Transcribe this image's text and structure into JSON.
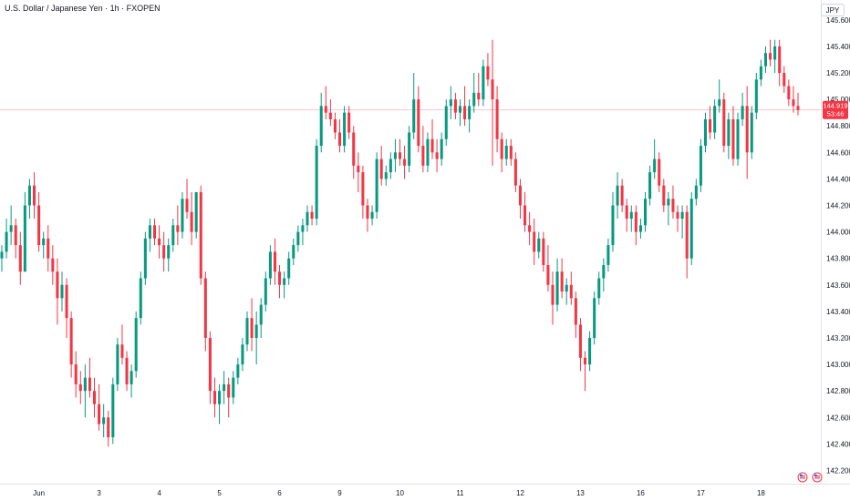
{
  "title": "U.S. Dollar / Japanese Yen · 1h · FXOPEN",
  "currency": "JPY",
  "price_label": "144.919",
  "countdown_label": "53:46",
  "colors": {
    "up": "#089981",
    "down": "#f23645",
    "price_line": "#f23645",
    "axis_text": "#131722",
    "border": "#e0e3eb"
  },
  "chart_data": {
    "type": "candlestick",
    "title": "U.S. Dollar / Japanese Yen · 1h · FXOPEN",
    "ylim": [
      142.1,
      145.75
    ],
    "y_ticks": [
      "142.200",
      "142.400",
      "142.600",
      "142.800",
      "143.000",
      "143.200",
      "143.400",
      "143.600",
      "143.800",
      "144.000",
      "144.200",
      "144.400",
      "144.600",
      "144.800",
      "145.000",
      "145.200",
      "145.400",
      "145.600"
    ],
    "x_ticks": [
      "Jun",
      "3",
      "4",
      "5",
      "6",
      "9",
      "10",
      "11",
      "12",
      "13",
      "16",
      "17",
      "18"
    ],
    "current_price": 144.92,
    "grid": false,
    "series": [
      {
        "candles": [
          [
            143.8,
            143.9,
            143.7,
            143.85
          ],
          [
            143.85,
            144.1,
            143.8,
            144.0
          ],
          [
            144.0,
            144.2,
            143.9,
            144.05
          ],
          [
            144.05,
            144.1,
            143.8,
            143.9
          ],
          [
            143.9,
            144.0,
            143.6,
            143.7
          ],
          [
            143.7,
            144.3,
            143.7,
            144.2
          ],
          [
            144.2,
            144.4,
            144.1,
            144.35
          ],
          [
            144.35,
            144.45,
            144.1,
            144.2
          ],
          [
            144.2,
            144.3,
            143.85,
            143.9
          ],
          [
            143.9,
            144.0,
            143.8,
            143.95
          ],
          [
            143.95,
            144.05,
            143.7,
            143.8
          ],
          [
            143.8,
            143.9,
            143.6,
            143.7
          ],
          [
            143.7,
            143.8,
            143.3,
            143.5
          ],
          [
            143.5,
            143.7,
            143.4,
            143.6
          ],
          [
            143.6,
            143.65,
            143.2,
            143.35
          ],
          [
            143.35,
            143.4,
            142.9,
            143.0
          ],
          [
            143.0,
            143.1,
            142.75,
            142.85
          ],
          [
            142.85,
            142.95,
            142.7,
            142.8
          ],
          [
            142.8,
            143.0,
            142.6,
            142.9
          ],
          [
            142.9,
            143.05,
            142.75,
            142.8
          ],
          [
            142.8,
            142.9,
            142.6,
            142.7
          ],
          [
            142.7,
            142.85,
            142.5,
            142.55
          ],
          [
            142.55,
            142.7,
            142.45,
            142.6
          ],
          [
            142.6,
            142.65,
            142.38,
            142.45
          ],
          [
            142.45,
            142.9,
            142.4,
            142.85
          ],
          [
            142.85,
            143.2,
            142.8,
            143.15
          ],
          [
            143.15,
            143.3,
            143.0,
            143.05
          ],
          [
            143.05,
            143.1,
            142.8,
            142.85
          ],
          [
            142.85,
            143.0,
            142.75,
            142.95
          ],
          [
            142.95,
            143.4,
            142.9,
            143.35
          ],
          [
            143.35,
            143.7,
            143.3,
            143.65
          ],
          [
            143.65,
            144.0,
            143.6,
            143.95
          ],
          [
            143.95,
            144.1,
            143.85,
            144.05
          ],
          [
            144.05,
            144.1,
            143.9,
            143.95
          ],
          [
            143.95,
            144.05,
            143.8,
            143.9
          ],
          [
            143.9,
            144.0,
            143.7,
            143.8
          ],
          [
            143.8,
            143.95,
            143.7,
            143.9
          ],
          [
            143.9,
            144.1,
            143.85,
            144.05
          ],
          [
            144.05,
            144.2,
            143.9,
            144.0
          ],
          [
            144.0,
            144.3,
            143.95,
            144.25
          ],
          [
            144.25,
            144.4,
            144.1,
            144.15
          ],
          [
            144.15,
            144.3,
            143.9,
            144.0
          ],
          [
            144.0,
            144.3,
            143.95,
            144.3
          ],
          [
            144.3,
            144.35,
            143.6,
            143.65
          ],
          [
            143.65,
            143.7,
            143.1,
            143.2
          ],
          [
            143.2,
            143.25,
            142.7,
            142.8
          ],
          [
            142.8,
            142.9,
            142.6,
            142.7
          ],
          [
            142.7,
            142.85,
            142.55,
            142.8
          ],
          [
            142.8,
            142.95,
            142.7,
            142.85
          ],
          [
            142.85,
            142.9,
            142.6,
            142.75
          ],
          [
            142.75,
            142.95,
            142.7,
            142.9
          ],
          [
            142.9,
            143.05,
            142.85,
            143.0
          ],
          [
            143.0,
            143.2,
            142.95,
            143.15
          ],
          [
            143.15,
            143.4,
            143.1,
            143.35
          ],
          [
            143.35,
            143.5,
            143.1,
            143.2
          ],
          [
            143.2,
            143.4,
            143.0,
            143.3
          ],
          [
            143.3,
            143.5,
            143.2,
            143.45
          ],
          [
            143.45,
            143.7,
            143.4,
            143.65
          ],
          [
            143.65,
            143.9,
            143.6,
            143.85
          ],
          [
            143.85,
            143.95,
            143.6,
            143.7
          ],
          [
            143.7,
            143.75,
            143.5,
            143.6
          ],
          [
            143.6,
            143.7,
            143.5,
            143.65
          ],
          [
            143.65,
            143.85,
            143.6,
            143.8
          ],
          [
            143.8,
            143.95,
            143.75,
            143.9
          ],
          [
            143.9,
            144.05,
            143.85,
            144.0
          ],
          [
            144.0,
            144.1,
            143.9,
            144.05
          ],
          [
            144.05,
            144.2,
            144.0,
            144.15
          ],
          [
            144.15,
            144.2,
            144.05,
            144.1
          ],
          [
            144.1,
            144.7,
            144.05,
            144.65
          ],
          [
            144.65,
            145.05,
            144.6,
            144.95
          ],
          [
            144.95,
            145.1,
            144.85,
            144.9
          ],
          [
            144.9,
            145.0,
            144.8,
            144.85
          ],
          [
            144.85,
            144.9,
            144.7,
            144.75
          ],
          [
            144.75,
            144.85,
            144.6,
            144.65
          ],
          [
            144.65,
            144.95,
            144.6,
            144.9
          ],
          [
            144.9,
            144.95,
            144.7,
            144.75
          ],
          [
            144.75,
            144.8,
            144.4,
            144.5
          ],
          [
            144.5,
            144.6,
            144.3,
            144.45
          ],
          [
            144.45,
            144.5,
            144.1,
            144.2
          ],
          [
            144.2,
            144.25,
            144.0,
            144.1
          ],
          [
            144.1,
            144.2,
            144.05,
            144.15
          ],
          [
            144.15,
            144.6,
            144.1,
            144.55
          ],
          [
            144.55,
            144.65,
            144.35,
            144.4
          ],
          [
            144.4,
            144.5,
            144.35,
            144.45
          ],
          [
            144.45,
            144.6,
            144.4,
            144.55
          ],
          [
            144.55,
            144.7,
            144.45,
            144.6
          ],
          [
            144.6,
            144.7,
            144.5,
            144.55
          ],
          [
            144.55,
            144.65,
            144.4,
            144.5
          ],
          [
            144.5,
            144.8,
            144.45,
            144.75
          ],
          [
            144.75,
            145.2,
            144.7,
            145.0
          ],
          [
            145.0,
            145.1,
            144.6,
            144.65
          ],
          [
            144.65,
            144.8,
            144.45,
            144.5
          ],
          [
            144.5,
            144.75,
            144.45,
            144.7
          ],
          [
            144.7,
            144.85,
            144.55,
            144.6
          ],
          [
            144.6,
            144.7,
            144.45,
            144.55
          ],
          [
            144.55,
            144.75,
            144.5,
            144.7
          ],
          [
            144.7,
            145.0,
            144.65,
            144.95
          ],
          [
            144.95,
            145.1,
            144.85,
            145.0
          ],
          [
            145.0,
            145.05,
            144.85,
            144.9
          ],
          [
            144.9,
            145.0,
            144.8,
            144.95
          ],
          [
            144.95,
            145.1,
            144.8,
            144.85
          ],
          [
            144.85,
            145.0,
            144.75,
            144.95
          ],
          [
            144.95,
            145.2,
            144.9,
            145.05
          ],
          [
            145.05,
            145.2,
            144.95,
            145.0
          ],
          [
            145.0,
            145.3,
            144.95,
            145.25
          ],
          [
            145.25,
            145.35,
            145.1,
            145.15
          ],
          [
            145.15,
            145.45,
            144.5,
            145.0
          ],
          [
            145.0,
            145.1,
            144.6,
            144.7
          ],
          [
            144.7,
            144.75,
            144.45,
            144.55
          ],
          [
            144.55,
            144.7,
            144.5,
            144.65
          ],
          [
            144.65,
            144.7,
            144.5,
            144.55
          ],
          [
            144.55,
            144.6,
            144.3,
            144.35
          ],
          [
            144.35,
            144.4,
            144.1,
            144.2
          ],
          [
            144.2,
            144.3,
            144.0,
            144.05
          ],
          [
            144.05,
            144.15,
            143.9,
            144.0
          ],
          [
            144.0,
            144.1,
            143.75,
            143.85
          ],
          [
            143.85,
            144.0,
            143.8,
            143.95
          ],
          [
            143.95,
            144.0,
            143.7,
            143.75
          ],
          [
            143.75,
            143.9,
            143.55,
            143.6
          ],
          [
            143.6,
            143.7,
            143.3,
            143.45
          ],
          [
            143.45,
            143.8,
            143.4,
            143.7
          ],
          [
            143.7,
            143.8,
            143.5,
            143.55
          ],
          [
            143.55,
            143.65,
            143.45,
            143.6
          ],
          [
            143.6,
            143.7,
            143.45,
            143.5
          ],
          [
            143.5,
            143.55,
            143.2,
            143.3
          ],
          [
            143.3,
            143.35,
            142.95,
            143.05
          ],
          [
            143.05,
            143.1,
            142.8,
            143.0
          ],
          [
            143.0,
            143.25,
            142.95,
            143.2
          ],
          [
            143.2,
            143.55,
            143.15,
            143.5
          ],
          [
            143.5,
            143.7,
            143.45,
            143.65
          ],
          [
            143.65,
            143.8,
            143.55,
            143.75
          ],
          [
            143.75,
            143.95,
            143.7,
            143.9
          ],
          [
            143.9,
            144.3,
            143.85,
            144.2
          ],
          [
            144.2,
            144.45,
            144.1,
            144.35
          ],
          [
            144.35,
            144.4,
            144.15,
            144.2
          ],
          [
            144.2,
            144.25,
            144.0,
            144.1
          ],
          [
            144.1,
            144.2,
            144.0,
            144.15
          ],
          [
            144.15,
            144.2,
            143.9,
            144.0
          ],
          [
            144.0,
            144.1,
            143.95,
            144.05
          ],
          [
            144.05,
            144.3,
            144.0,
            144.25
          ],
          [
            144.25,
            144.5,
            144.2,
            144.45
          ],
          [
            144.45,
            144.7,
            144.4,
            144.55
          ],
          [
            144.55,
            144.6,
            144.3,
            144.35
          ],
          [
            144.35,
            144.4,
            144.15,
            144.2
          ],
          [
            144.2,
            144.3,
            144.05,
            144.25
          ],
          [
            144.25,
            144.35,
            144.1,
            144.15
          ],
          [
            144.15,
            144.2,
            144.0,
            144.1
          ],
          [
            144.1,
            144.2,
            143.95,
            144.15
          ],
          [
            144.15,
            144.2,
            143.65,
            143.8
          ],
          [
            143.8,
            144.3,
            143.75,
            144.25
          ],
          [
            144.25,
            144.4,
            144.2,
            144.35
          ],
          [
            144.35,
            144.7,
            144.3,
            144.65
          ],
          [
            144.65,
            144.9,
            144.6,
            144.85
          ],
          [
            144.85,
            144.95,
            144.7,
            144.75
          ],
          [
            144.75,
            145.0,
            144.7,
            144.95
          ],
          [
            144.95,
            145.15,
            144.9,
            145.0
          ],
          [
            145.0,
            145.05,
            144.6,
            144.65
          ],
          [
            144.65,
            144.9,
            144.55,
            144.85
          ],
          [
            144.85,
            144.95,
            144.5,
            144.55
          ],
          [
            144.55,
            144.9,
            144.5,
            144.85
          ],
          [
            144.85,
            145.05,
            144.8,
            144.95
          ],
          [
            144.95,
            145.1,
            144.4,
            144.6
          ],
          [
            144.6,
            144.95,
            144.55,
            144.9
          ],
          [
            144.9,
            145.2,
            144.85,
            145.15
          ],
          [
            145.15,
            145.3,
            145.1,
            145.25
          ],
          [
            145.25,
            145.4,
            145.2,
            145.35
          ],
          [
            145.35,
            145.45,
            145.25,
            145.3
          ],
          [
            145.3,
            145.45,
            145.2,
            145.4
          ],
          [
            145.4,
            145.45,
            145.1,
            145.2
          ],
          [
            145.2,
            145.25,
            145.05,
            145.1
          ],
          [
            145.1,
            145.15,
            144.95,
            145.0
          ],
          [
            145.0,
            145.1,
            144.9,
            144.95
          ],
          [
            144.95,
            145.05,
            144.88,
            144.92
          ]
        ]
      }
    ]
  }
}
